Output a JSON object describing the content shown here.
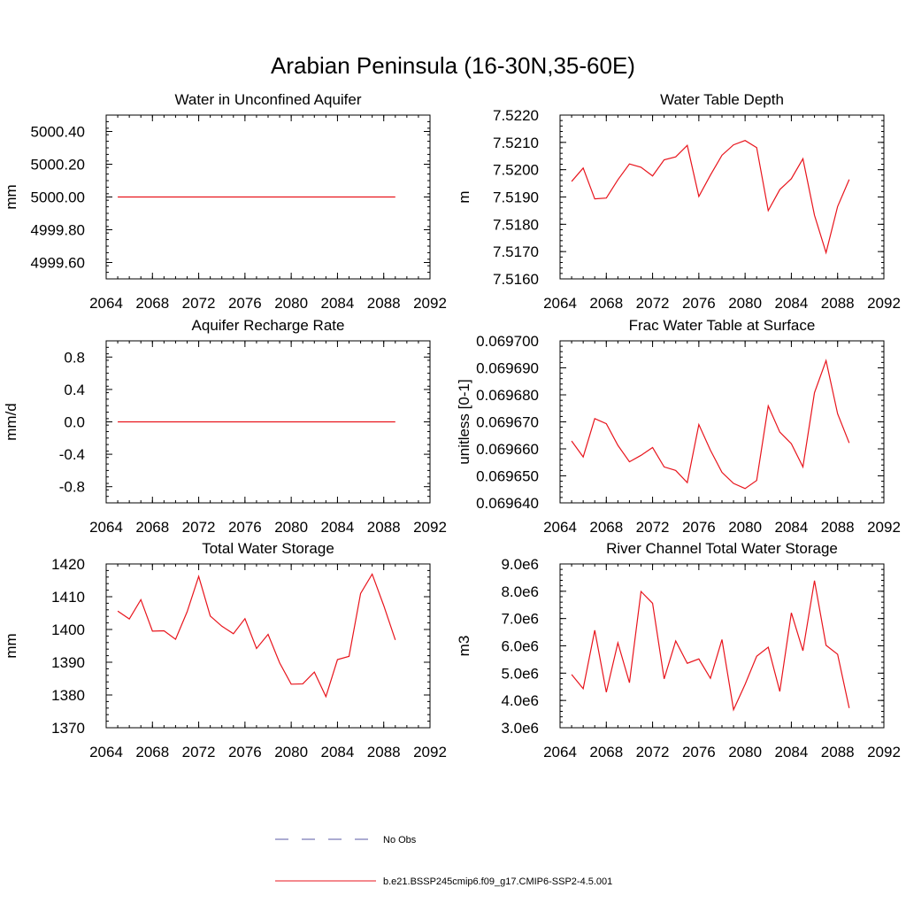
{
  "figure": {
    "title": "Arabian Peninsula (16-30N,35-60E)"
  },
  "legend": {
    "items": [
      {
        "label": "No Obs",
        "color": "#5a5aa6",
        "style": "dashed"
      },
      {
        "label": "b.e21.BSSP245cmip6.f09_g17.CMIP6-SSP2-4.5.001",
        "color": "#e8141c",
        "style": "solid"
      }
    ]
  },
  "colors": {
    "series": "#e8141c",
    "axes": "#000000"
  },
  "chart_data": [
    {
      "type": "line",
      "title": "Water in Unconfined Aquifer",
      "ylabel": "mm",
      "xlim": [
        2064,
        2092
      ],
      "xticks": [
        2064,
        2068,
        2072,
        2076,
        2080,
        2084,
        2088,
        2092
      ],
      "ylim": [
        4999.5,
        5000.5
      ],
      "yticks": [
        4999.6,
        4999.8,
        5000.0,
        5000.2,
        5000.4
      ],
      "ytick_labels": [
        "4999.60",
        "4999.80",
        "5000.00",
        "5000.20",
        "5000.40"
      ],
      "x": [
        2065,
        2066,
        2067,
        2068,
        2069,
        2070,
        2071,
        2072,
        2073,
        2074,
        2075,
        2076,
        2077,
        2078,
        2079,
        2080,
        2081,
        2082,
        2083,
        2084,
        2085,
        2086,
        2087,
        2088,
        2089
      ],
      "y": [
        5000.0,
        5000.0,
        5000.0,
        5000.0,
        5000.0,
        5000.0,
        5000.0,
        5000.0,
        5000.0,
        5000.0,
        5000.0,
        5000.0,
        5000.0,
        5000.0,
        5000.0,
        5000.0,
        5000.0,
        5000.0,
        5000.0,
        5000.0,
        5000.0,
        5000.0,
        5000.0,
        5000.0,
        5000.0
      ]
    },
    {
      "type": "line",
      "title": "Water Table Depth",
      "ylabel": "m",
      "xlim": [
        2064,
        2092
      ],
      "xticks": [
        2064,
        2068,
        2072,
        2076,
        2080,
        2084,
        2088,
        2092
      ],
      "ylim": [
        7.516,
        7.522
      ],
      "yticks": [
        7.516,
        7.517,
        7.518,
        7.519,
        7.52,
        7.521,
        7.522
      ],
      "ytick_labels": [
        "7.5160",
        "7.5170",
        "7.5180",
        "7.5190",
        "7.5200",
        "7.5210",
        "7.5220"
      ],
      "x": [
        2065,
        2066,
        2067,
        2068,
        2069,
        2070,
        2071,
        2072,
        2073,
        2074,
        2075,
        2076,
        2077,
        2078,
        2079,
        2080,
        2081,
        2082,
        2083,
        2084,
        2085,
        2086,
        2087,
        2088,
        2089
      ],
      "y": [
        7.51957,
        7.52006,
        7.51893,
        7.51896,
        7.51963,
        7.52021,
        7.52009,
        7.51977,
        7.52036,
        7.52047,
        7.52089,
        7.51902,
        7.5198,
        7.52053,
        7.52091,
        7.52107,
        7.52081,
        7.5185,
        7.51927,
        7.51967,
        7.5204,
        7.51833,
        7.51696,
        7.51865,
        7.51964
      ]
    },
    {
      "type": "line",
      "title": "Aquifer Recharge Rate",
      "ylabel": "mm/d",
      "xlim": [
        2064,
        2092
      ],
      "xticks": [
        2064,
        2068,
        2072,
        2076,
        2080,
        2084,
        2088,
        2092
      ],
      "ylim": [
        -1.0,
        1.0
      ],
      "yticks": [
        -0.8,
        -0.4,
        0.0,
        0.4,
        0.8
      ],
      "ytick_labels": [
        "-0.8",
        "-0.4",
        "0.0",
        "0.4",
        "0.8"
      ],
      "x": [
        2065,
        2066,
        2067,
        2068,
        2069,
        2070,
        2071,
        2072,
        2073,
        2074,
        2075,
        2076,
        2077,
        2078,
        2079,
        2080,
        2081,
        2082,
        2083,
        2084,
        2085,
        2086,
        2087,
        2088,
        2089
      ],
      "y": [
        0.0,
        0.0,
        0.0,
        0.0,
        0.0,
        0.0,
        0.0,
        0.0,
        0.0,
        0.0,
        0.0,
        0.0,
        0.0,
        0.0,
        0.0,
        0.0,
        0.0,
        0.0,
        0.0,
        0.0,
        0.0,
        0.0,
        0.0,
        0.0,
        0.0
      ]
    },
    {
      "type": "line",
      "title": "Frac Water Table at Surface",
      "ylabel": "unitless [0-1]",
      "xlim": [
        2064,
        2092
      ],
      "xticks": [
        2064,
        2068,
        2072,
        2076,
        2080,
        2084,
        2088,
        2092
      ],
      "ylim": [
        0.06964,
        0.0697
      ],
      "yticks": [
        0.06964,
        0.06965,
        0.06966,
        0.06967,
        0.06968,
        0.06969,
        0.0697
      ],
      "ytick_labels": [
        "0.069640",
        "0.069650",
        "0.069660",
        "0.069670",
        "0.069680",
        "0.069690",
        "0.069700"
      ],
      "x": [
        2065,
        2066,
        2067,
        2068,
        2069,
        2070,
        2071,
        2072,
        2073,
        2074,
        2075,
        2076,
        2077,
        2078,
        2079,
        2080,
        2081,
        2082,
        2083,
        2084,
        2085,
        2086,
        2087,
        2088,
        2089
      ],
      "y": [
        0.0696629,
        0.069657,
        0.0696712,
        0.0696693,
        0.0696613,
        0.0696552,
        0.0696576,
        0.0696605,
        0.0696533,
        0.069652,
        0.0696475,
        0.069669,
        0.0696595,
        0.0696513,
        0.0696472,
        0.0696453,
        0.0696483,
        0.0696759,
        0.0696662,
        0.0696619,
        0.0696533,
        0.0696808,
        0.0696927,
        0.069673,
        0.0696622
      ]
    },
    {
      "type": "line",
      "title": "Total Water Storage",
      "ylabel": "mm",
      "xlim": [
        2064,
        2092
      ],
      "xticks": [
        2064,
        2068,
        2072,
        2076,
        2080,
        2084,
        2088,
        2092
      ],
      "ylim": [
        1370,
        1420
      ],
      "yticks": [
        1370,
        1380,
        1390,
        1400,
        1410,
        1420
      ],
      "ytick_labels": [
        "1370",
        "1380",
        "1390",
        "1400",
        "1410",
        "1420"
      ],
      "x": [
        2065,
        2066,
        2067,
        2068,
        2069,
        2070,
        2071,
        2072,
        2073,
        2074,
        2075,
        2076,
        2077,
        2078,
        2079,
        2080,
        2081,
        2082,
        2083,
        2084,
        2085,
        2086,
        2087,
        2088,
        2089
      ],
      "y": [
        1405.6,
        1403.2,
        1409.1,
        1399.5,
        1399.6,
        1397.0,
        1405.4,
        1416.2,
        1404.1,
        1401.0,
        1398.7,
        1403.3,
        1394.2,
        1398.5,
        1389.8,
        1383.3,
        1383.4,
        1387.0,
        1379.5,
        1390.8,
        1391.8,
        1411.0,
        1416.9,
        1407.3,
        1396.8
      ]
    },
    {
      "type": "line",
      "title": "River Channel Total Water Storage",
      "ylabel": "m3",
      "xlim": [
        2064,
        2092
      ],
      "xticks": [
        2064,
        2068,
        2072,
        2076,
        2080,
        2084,
        2088,
        2092
      ],
      "ylim": [
        3000000,
        9000000
      ],
      "yticks": [
        3000000,
        4000000,
        5000000,
        6000000,
        7000000,
        8000000,
        9000000
      ],
      "ytick_labels": [
        "3.0e6",
        "4.0e6",
        "5.0e6",
        "6.0e6",
        "7.0e6",
        "8.0e6",
        "9.0e6"
      ],
      "x": [
        2065,
        2066,
        2067,
        2068,
        2069,
        2070,
        2071,
        2072,
        2073,
        2074,
        2075,
        2076,
        2077,
        2078,
        2079,
        2080,
        2081,
        2082,
        2083,
        2084,
        2085,
        2086,
        2087,
        2088,
        2089
      ],
      "y": [
        4950000,
        4430000,
        6570000,
        4300000,
        6110000,
        4650000,
        7990000,
        7560000,
        4790000,
        6180000,
        5360000,
        5520000,
        4810000,
        6230000,
        3660000,
        4590000,
        5620000,
        5950000,
        4330000,
        7210000,
        5820000,
        8390000,
        6020000,
        5690000,
        3720000
      ]
    }
  ]
}
